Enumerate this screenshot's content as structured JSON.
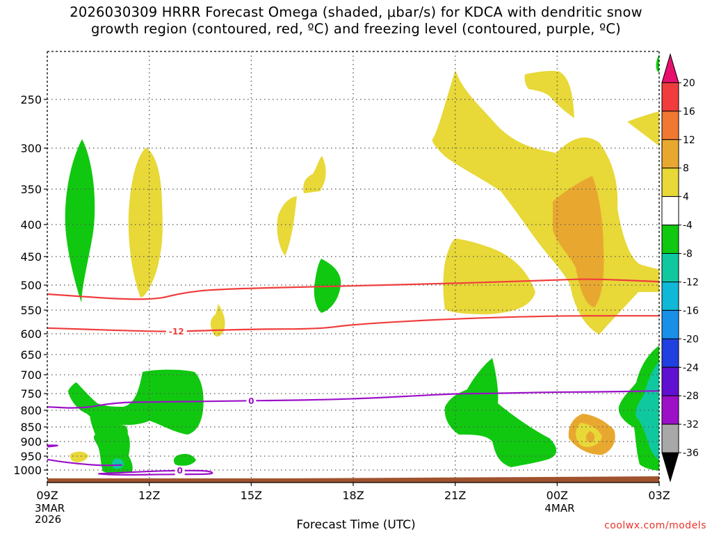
{
  "chart_data": {
    "type": "contour",
    "title": "2026030309 HRRR Forecast Omega (shaded, μbar/s) for KDCA with dendritic snow\ngrowth region (contoured, red, ºC) and freezing level (contoured, purple, ºC)",
    "xlabel": "Forecast Time (UTC)",
    "credit": "coolwx.com/models",
    "x_ticks": [
      {
        "label": "09Z",
        "sub": [
          "3MAR",
          "2026"
        ],
        "hour": 0
      },
      {
        "label": "12Z",
        "sub": [],
        "hour": 3
      },
      {
        "label": "15Z",
        "sub": [],
        "hour": 6
      },
      {
        "label": "18Z",
        "sub": [],
        "hour": 9
      },
      {
        "label": "21Z",
        "sub": [],
        "hour": 12
      },
      {
        "label": "00Z",
        "sub": [
          "4MAR"
        ],
        "hour": 15
      },
      {
        "label": "03Z",
        "sub": [],
        "hour": 18
      }
    ],
    "y_ticks_hpa": [
      250,
      300,
      350,
      400,
      450,
      500,
      550,
      600,
      650,
      700,
      750,
      800,
      850,
      900,
      950,
      1000
    ],
    "ylim_hpa": [
      200,
      1030
    ],
    "xlim_hours": [
      0,
      18
    ],
    "colorbar": {
      "labels": [
        "20",
        "16",
        "12",
        "8",
        "4",
        "-4",
        "-8",
        "-12",
        "-16",
        "-20",
        "-24",
        "-28",
        "-32",
        "-36"
      ],
      "colors": [
        "#e8106e",
        "#f03c3c",
        "#f07830",
        "#e8a830",
        "#e8d838",
        "#ffffff",
        "#10c810",
        "#10c8a0",
        "#10b8d8",
        "#1890e8",
        "#2040e0",
        "#6010d0",
        "#9c10c8",
        "#a8a8a8",
        "#000000"
      ]
    },
    "contour_lines": [
      {
        "name": "-12 (dendritic bottom)",
        "color": "#f03c3c",
        "label": "-12",
        "label_hour": 3.8,
        "points": [
          [
            0,
            588
          ],
          [
            3,
            595
          ],
          [
            4,
            595
          ],
          [
            6,
            590
          ],
          [
            8,
            590
          ],
          [
            9,
            580
          ],
          [
            12,
            568
          ],
          [
            15,
            562
          ],
          [
            17,
            562
          ],
          [
            18,
            562
          ]
        ]
      },
      {
        "name": "-18 (dendritic top)",
        "color": "#f03c3c",
        "label": "",
        "label_hour": null,
        "points": [
          [
            0,
            518
          ],
          [
            3,
            532
          ],
          [
            4,
            515
          ],
          [
            5,
            508
          ],
          [
            8,
            503
          ],
          [
            12,
            497
          ],
          [
            13,
            495
          ],
          [
            15,
            491
          ],
          [
            16,
            489
          ],
          [
            18,
            494
          ]
        ]
      },
      {
        "name": "0 (freezing level)",
        "color": "#9c10c8",
        "label": "0",
        "label_hour": 6.0,
        "points": [
          [
            0,
            790
          ],
          [
            1,
            795
          ],
          [
            2,
            777
          ],
          [
            3,
            775
          ],
          [
            6,
            772
          ],
          [
            9,
            767
          ],
          [
            12,
            750
          ],
          [
            13,
            750
          ],
          [
            15,
            746
          ],
          [
            16,
            746
          ],
          [
            18,
            743
          ]
        ]
      },
      {
        "name": "0 (near-surface)",
        "color": "#9c10c8",
        "label": "0",
        "label_hour": 3.9,
        "points": [
          [
            1.5,
            1009
          ],
          [
            3,
            1003
          ],
          [
            4,
            1001
          ],
          [
            4.8,
            1002
          ],
          [
            4.9,
            1010
          ],
          [
            4.0,
            1010
          ],
          [
            2.0,
            1012
          ],
          [
            1.5,
            1009
          ]
        ]
      },
      {
        "name": "0 (low-level)",
        "color": "#9c10c8",
        "label": "",
        "label_hour": null,
        "points": [
          [
            0,
            962
          ],
          [
            0.5,
            972
          ],
          [
            1.5,
            984
          ],
          [
            2.2,
            982
          ]
        ]
      },
      {
        "name": "0 (bottom-left)",
        "color": "#9c10c8",
        "label": "",
        "label_hour": null,
        "points": [
          [
            0,
            913
          ],
          [
            0.4,
            913
          ],
          [
            0,
            918
          ]
        ]
      }
    ],
    "terrain_color": "#a0522d"
  }
}
